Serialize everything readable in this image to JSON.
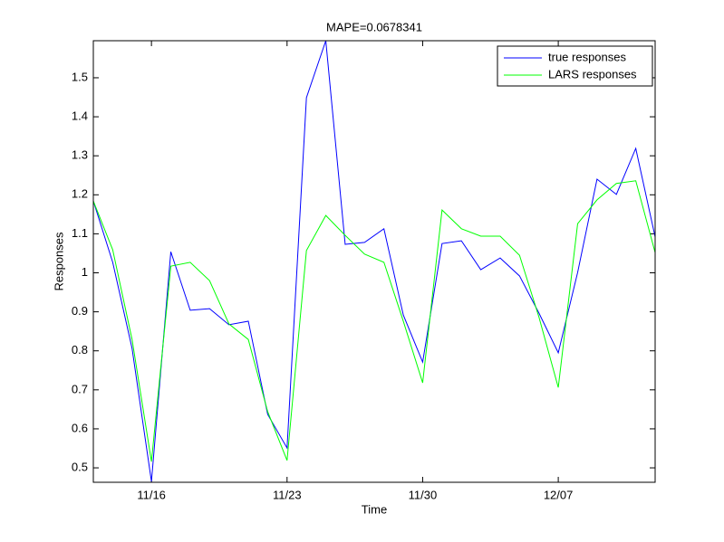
{
  "chart_data": {
    "type": "line",
    "title": "MAPE=0.0678341",
    "xlabel": "Time",
    "ylabel": "Responses",
    "categories": [
      null,
      null,
      null,
      "11/16",
      null,
      null,
      null,
      null,
      null,
      null,
      "11/23",
      null,
      null,
      null,
      null,
      null,
      null,
      "11/30",
      null,
      null,
      null,
      null,
      null,
      null,
      "12/07",
      null,
      null,
      null,
      null,
      null
    ],
    "series": [
      {
        "name": "true responses",
        "color": "#0000ff",
        "values": [
          1.184,
          1.027,
          0.806,
          0.465,
          1.054,
          0.904,
          0.908,
          0.867,
          0.876,
          0.637,
          0.551,
          1.449,
          1.595,
          1.073,
          1.078,
          1.113,
          0.892,
          0.771,
          1.075,
          1.082,
          1.008,
          1.038,
          0.992,
          0.897,
          0.795,
          1.001,
          1.24,
          1.201,
          1.319,
          1.092
        ]
      },
      {
        "name": "LARS responses",
        "color": "#00ff00",
        "values": [
          1.184,
          1.059,
          0.829,
          0.516,
          1.017,
          1.027,
          0.98,
          0.869,
          0.829,
          0.644,
          0.519,
          1.057,
          1.147,
          1.096,
          1.048,
          1.027,
          0.876,
          0.718,
          1.161,
          1.113,
          1.094,
          1.094,
          1.045,
          0.887,
          0.706,
          1.126,
          1.187,
          1.229,
          1.236,
          1.052
        ]
      }
    ],
    "ylim": [
      0.463,
      1.595
    ],
    "yticks": [
      0.5,
      0.6,
      0.7,
      0.8,
      0.9,
      1,
      1.1,
      1.2,
      1.3,
      1.4,
      1.5
    ],
    "grid": false,
    "legend": "top-right"
  }
}
